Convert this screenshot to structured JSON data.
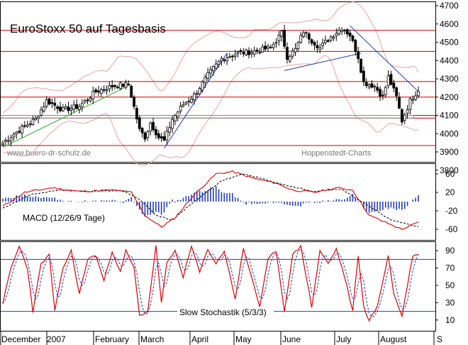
{
  "chart_data": [
    {
      "type": "candlestick",
      "title": "EuroStoxx 50 auf Tagesbasis",
      "watermark_left": "www.buero-dr-schulz.de",
      "watermark_right": "Hoppenstedt-Charts",
      "ylim": [
        3800,
        4700
      ],
      "y_ticks": [
        "4700",
        "4600",
        "4500",
        "4400",
        "4300",
        "4200",
        "4100",
        "4000",
        "3900",
        "3800"
      ],
      "horizontal_levels": [
        4565,
        4450,
        4285,
        4200,
        4100,
        4085,
        3935
      ],
      "anchors": [
        {
          "t": 0,
          "v": 3950
        },
        {
          "t": 6,
          "v": 4020
        },
        {
          "t": 12,
          "v": 4080
        },
        {
          "t": 16,
          "v": 4180
        },
        {
          "t": 22,
          "v": 4130
        },
        {
          "t": 28,
          "v": 4150
        },
        {
          "t": 34,
          "v": 4230
        },
        {
          "t": 40,
          "v": 4260
        },
        {
          "t": 46,
          "v": 4270
        },
        {
          "t": 50,
          "v": 4020
        },
        {
          "t": 52,
          "v": 3980
        },
        {
          "t": 54,
          "v": 4060
        },
        {
          "t": 57,
          "v": 3980
        },
        {
          "t": 59,
          "v": 3960
        },
        {
          "t": 62,
          "v": 4080
        },
        {
          "t": 66,
          "v": 4160
        },
        {
          "t": 70,
          "v": 4210
        },
        {
          "t": 75,
          "v": 4320
        },
        {
          "t": 80,
          "v": 4410
        },
        {
          "t": 86,
          "v": 4440
        },
        {
          "t": 92,
          "v": 4450
        },
        {
          "t": 98,
          "v": 4470
        },
        {
          "t": 102,
          "v": 4550
        },
        {
          "t": 104,
          "v": 4420
        },
        {
          "t": 107,
          "v": 4460
        },
        {
          "t": 110,
          "v": 4560
        },
        {
          "t": 113,
          "v": 4510
        },
        {
          "t": 116,
          "v": 4470
        },
        {
          "t": 120,
          "v": 4530
        },
        {
          "t": 124,
          "v": 4580
        },
        {
          "t": 127,
          "v": 4540
        },
        {
          "t": 130,
          "v": 4420
        },
        {
          "t": 132,
          "v": 4280
        },
        {
          "t": 136,
          "v": 4260
        },
        {
          "t": 139,
          "v": 4200
        },
        {
          "t": 141,
          "v": 4310
        },
        {
          "t": 144,
          "v": 4200
        },
        {
          "t": 146,
          "v": 4070
        },
        {
          "t": 149,
          "v": 4180
        },
        {
          "t": 152,
          "v": 4240
        }
      ],
      "trendlines": [
        {
          "name": "green",
          "color": "#22aa22",
          "from": [
            0,
            3925
          ],
          "to": [
            47,
            4270
          ]
        },
        {
          "name": "blue-1",
          "color": "#1f3fbf",
          "from": [
            59,
            3920
          ],
          "to": [
            82,
            4440
          ]
        },
        {
          "name": "blue-2",
          "color": "#1f3fbf",
          "from": [
            103,
            4345
          ],
          "to": [
            131,
            4440
          ]
        },
        {
          "name": "blue-3",
          "color": "#1f3fbf",
          "from": [
            127,
            4590
          ],
          "to": [
            152,
            4230
          ]
        }
      ]
    },
    {
      "type": "macd",
      "label": "MACD (12/26/9 Tage)",
      "ylim": [
        -80,
        80
      ],
      "y_ticks": [
        "60",
        "20",
        "-20",
        "-60"
      ],
      "macd_anchors": [
        {
          "t": 0,
          "v": -10
        },
        {
          "t": 8,
          "v": 20
        },
        {
          "t": 18,
          "v": 30
        },
        {
          "t": 28,
          "v": 22
        },
        {
          "t": 40,
          "v": 25
        },
        {
          "t": 47,
          "v": 20
        },
        {
          "t": 52,
          "v": -30
        },
        {
          "t": 58,
          "v": -55
        },
        {
          "t": 63,
          "v": -35
        },
        {
          "t": 70,
          "v": 15
        },
        {
          "t": 78,
          "v": 60
        },
        {
          "t": 84,
          "v": 65
        },
        {
          "t": 92,
          "v": 50
        },
        {
          "t": 100,
          "v": 40
        },
        {
          "t": 106,
          "v": 25
        },
        {
          "t": 114,
          "v": 20
        },
        {
          "t": 122,
          "v": 30
        },
        {
          "t": 128,
          "v": 25
        },
        {
          "t": 134,
          "v": -30
        },
        {
          "t": 140,
          "v": -45
        },
        {
          "t": 146,
          "v": -60
        },
        {
          "t": 152,
          "v": -45
        }
      ],
      "signal_anchors": [
        {
          "t": 0,
          "v": -15
        },
        {
          "t": 10,
          "v": 15
        },
        {
          "t": 20,
          "v": 25
        },
        {
          "t": 32,
          "v": 22
        },
        {
          "t": 44,
          "v": 24
        },
        {
          "t": 50,
          "v": 5
        },
        {
          "t": 56,
          "v": -30
        },
        {
          "t": 62,
          "v": -40
        },
        {
          "t": 70,
          "v": 0
        },
        {
          "t": 80,
          "v": 45
        },
        {
          "t": 88,
          "v": 60
        },
        {
          "t": 96,
          "v": 48
        },
        {
          "t": 104,
          "v": 35
        },
        {
          "t": 114,
          "v": 22
        },
        {
          "t": 124,
          "v": 27
        },
        {
          "t": 134,
          "v": -10
        },
        {
          "t": 142,
          "v": -40
        },
        {
          "t": 152,
          "v": -55
        }
      ]
    },
    {
      "type": "stochastic",
      "label": "Slow Stochastik (5/3/3)",
      "ylim": [
        0,
        100
      ],
      "y_ticks": [
        "90",
        "70",
        "50",
        "30",
        "10"
      ],
      "levels": [
        80,
        20
      ],
      "k_anchors": [
        {
          "t": 0,
          "v": 30
        },
        {
          "t": 3,
          "v": 70
        },
        {
          "t": 6,
          "v": 95
        },
        {
          "t": 9,
          "v": 70
        },
        {
          "t": 11,
          "v": 20
        },
        {
          "t": 14,
          "v": 75
        },
        {
          "t": 17,
          "v": 85
        },
        {
          "t": 19,
          "v": 20
        },
        {
          "t": 22,
          "v": 70
        },
        {
          "t": 25,
          "v": 90
        },
        {
          "t": 28,
          "v": 40
        },
        {
          "t": 31,
          "v": 80
        },
        {
          "t": 34,
          "v": 85
        },
        {
          "t": 37,
          "v": 55
        },
        {
          "t": 40,
          "v": 90
        },
        {
          "t": 43,
          "v": 65
        },
        {
          "t": 45,
          "v": 90
        },
        {
          "t": 48,
          "v": 70
        },
        {
          "t": 50,
          "v": 15
        },
        {
          "t": 53,
          "v": 20
        },
        {
          "t": 56,
          "v": 95
        },
        {
          "t": 58,
          "v": 30
        },
        {
          "t": 60,
          "v": 75
        },
        {
          "t": 63,
          "v": 90
        },
        {
          "t": 66,
          "v": 60
        },
        {
          "t": 69,
          "v": 95
        },
        {
          "t": 72,
          "v": 65
        },
        {
          "t": 75,
          "v": 92
        },
        {
          "t": 78,
          "v": 75
        },
        {
          "t": 81,
          "v": 90
        },
        {
          "t": 85,
          "v": 35
        },
        {
          "t": 88,
          "v": 92
        },
        {
          "t": 91,
          "v": 60
        },
        {
          "t": 94,
          "v": 25
        },
        {
          "t": 97,
          "v": 80
        },
        {
          "t": 100,
          "v": 90
        },
        {
          "t": 103,
          "v": 20
        },
        {
          "t": 106,
          "v": 85
        },
        {
          "t": 109,
          "v": 95
        },
        {
          "t": 113,
          "v": 25
        },
        {
          "t": 116,
          "v": 90
        },
        {
          "t": 119,
          "v": 75
        },
        {
          "t": 122,
          "v": 92
        },
        {
          "t": 125,
          "v": 60
        },
        {
          "t": 128,
          "v": 20
        },
        {
          "t": 130,
          "v": 85
        },
        {
          "t": 132,
          "v": 25
        },
        {
          "t": 134,
          "v": 10
        },
        {
          "t": 137,
          "v": 25
        },
        {
          "t": 141,
          "v": 85
        },
        {
          "t": 143,
          "v": 40
        },
        {
          "t": 146,
          "v": 15
        },
        {
          "t": 150,
          "v": 85
        }
      ]
    }
  ],
  "x_axis": {
    "labels": [
      "December",
      "2007",
      "February",
      "March",
      "April",
      "May",
      "June",
      "July",
      "August",
      "S"
    ]
  }
}
